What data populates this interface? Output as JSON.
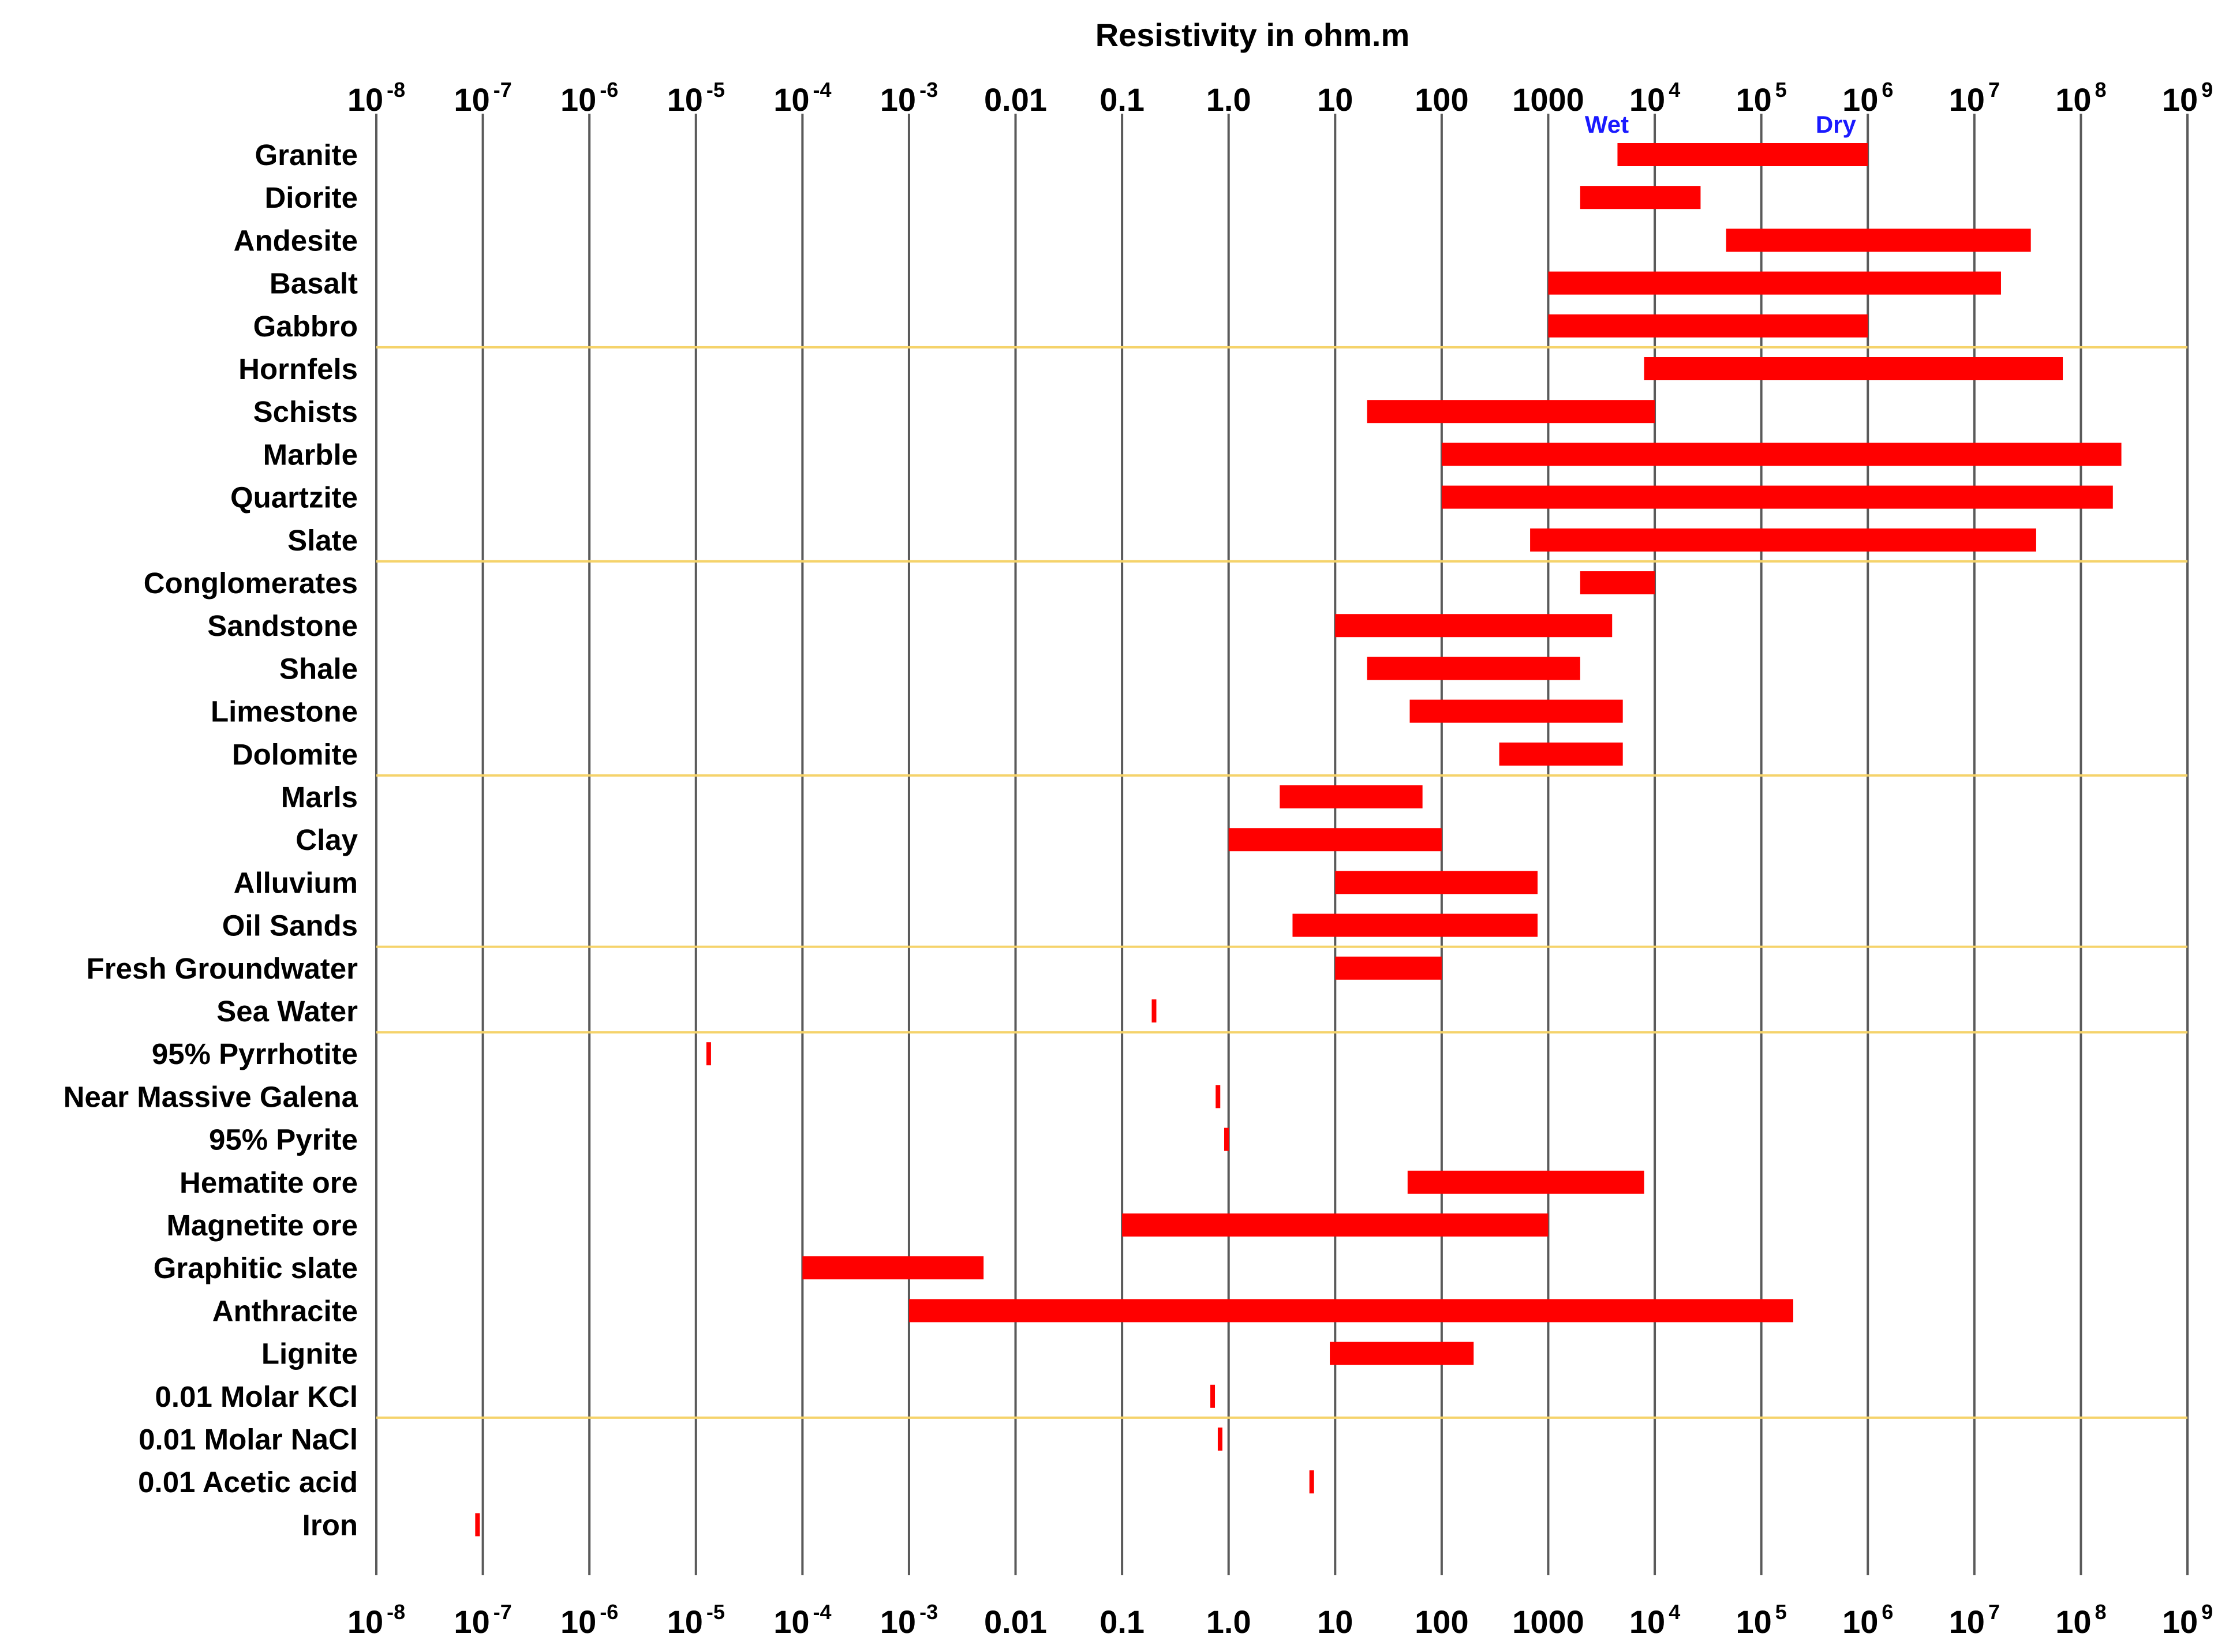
{
  "chart_data": {
    "type": "range-bar",
    "title": "Resistivity in ohm.m",
    "xscale": "log10",
    "xlim": [
      -8,
      9
    ],
    "ticks": [
      {
        "base": "10",
        "exp": "-8"
      },
      {
        "base": "10",
        "exp": "-7"
      },
      {
        "base": "10",
        "exp": "-6"
      },
      {
        "base": "10",
        "exp": "-5"
      },
      {
        "base": "10",
        "exp": "-4"
      },
      {
        "base": "10",
        "exp": "-3"
      },
      {
        "base": "0.01",
        "exp": ""
      },
      {
        "base": "0.1",
        "exp": ""
      },
      {
        "base": "1.0",
        "exp": ""
      },
      {
        "base": "10",
        "exp": ""
      },
      {
        "base": "100",
        "exp": ""
      },
      {
        "base": "1000",
        "exp": ""
      },
      {
        "base": "10",
        "exp": "4"
      },
      {
        "base": "10",
        "exp": "5"
      },
      {
        "base": "10",
        "exp": "6"
      },
      {
        "base": "10",
        "exp": "7"
      },
      {
        "base": "10",
        "exp": "8"
      },
      {
        "base": "10",
        "exp": "9"
      }
    ],
    "annotations": [
      {
        "text": "Wet",
        "x_log": 3.55
      },
      {
        "text": "Dry",
        "x_log": 5.7
      }
    ],
    "group_separators_after": [
      4,
      9,
      14,
      18,
      20,
      29
    ],
    "materials": [
      {
        "name": "Granite",
        "range_log": [
          3.65,
          6.0
        ]
      },
      {
        "name": "Diorite",
        "range_log": [
          3.3,
          4.43
        ]
      },
      {
        "name": "Andesite",
        "range_log": [
          4.67,
          7.53
        ]
      },
      {
        "name": "Basalt",
        "range_log": [
          3.0,
          7.25
        ]
      },
      {
        "name": "Gabbro",
        "range_log": [
          3.0,
          6.0
        ]
      },
      {
        "name": "Hornfels",
        "range_log": [
          3.9,
          7.83
        ]
      },
      {
        "name": "Schists",
        "range_log": [
          1.3,
          4.0
        ]
      },
      {
        "name": "Marble",
        "range_log": [
          2.0,
          8.38
        ]
      },
      {
        "name": "Quartzite",
        "range_log": [
          2.0,
          8.3
        ]
      },
      {
        "name": "Slate",
        "range_log": [
          2.83,
          7.58
        ]
      },
      {
        "name": "Conglomerates",
        "range_log": [
          3.3,
          4.0
        ]
      },
      {
        "name": "Sandstone",
        "range_log": [
          1.0,
          3.6
        ]
      },
      {
        "name": "Shale",
        "range_log": [
          1.3,
          3.3
        ]
      },
      {
        "name": "Limestone",
        "range_log": [
          1.7,
          3.7
        ]
      },
      {
        "name": "Dolomite",
        "range_log": [
          2.54,
          3.7
        ]
      },
      {
        "name": "Marls",
        "range_log": [
          0.48,
          1.82
        ]
      },
      {
        "name": "Clay",
        "range_log": [
          0.0,
          2.0
        ]
      },
      {
        "name": "Alluvium",
        "range_log": [
          1.0,
          2.9
        ]
      },
      {
        "name": "Oil Sands",
        "range_log": [
          0.6,
          2.9
        ]
      },
      {
        "name": "Fresh Groundwater",
        "range_log": [
          1.0,
          2.0
        ]
      },
      {
        "name": "Sea Water",
        "range_log": [
          -0.7,
          -0.7
        ]
      },
      {
        "name": "95% Pyrrhotite",
        "range_log": [
          -4.88,
          -4.88
        ]
      },
      {
        "name": "Near Massive Galena",
        "range_log": [
          -0.1,
          -0.1
        ]
      },
      {
        "name": "95% Pyrite",
        "range_log": [
          -0.02,
          -0.02
        ]
      },
      {
        "name": "Hematite ore",
        "range_log": [
          1.68,
          3.9
        ]
      },
      {
        "name": "Magnetite ore",
        "range_log": [
          -1.0,
          3.0
        ]
      },
      {
        "name": "Graphitic slate",
        "range_log": [
          -4.0,
          -2.3
        ]
      },
      {
        "name": "Anthracite",
        "range_log": [
          -3.0,
          5.3
        ]
      },
      {
        "name": "Lignite",
        "range_log": [
          0.95,
          2.3
        ]
      },
      {
        "name": "0.01 Molar KCl",
        "range_log": [
          -0.15,
          -0.15
        ]
      },
      {
        "name": "0.01 Molar NaCl",
        "range_log": [
          -0.08,
          -0.08
        ]
      },
      {
        "name": "0.01 Acetic acid",
        "range_log": [
          0.78,
          0.78
        ]
      },
      {
        "name": "Iron",
        "range_log": [
          -7.05,
          -7.05
        ]
      }
    ]
  }
}
